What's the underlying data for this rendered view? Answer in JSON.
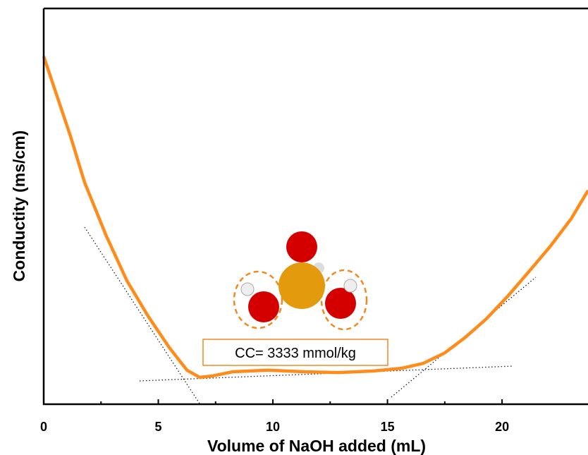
{
  "chart_data": {
    "type": "line",
    "xlabel": "Volume of NaOH added (mL)",
    "ylabel": "Conductity (ms/cm)",
    "annotation": "CC= 3333 mmol/kg",
    "xlim": [
      0,
      23.75
    ],
    "xticks": [
      0,
      5,
      10,
      15,
      20
    ],
    "ylim": [
      0,
      100
    ],
    "series": [
      {
        "color": "#ff8c1a",
        "x": [
          0,
          0.55,
          1.17,
          1.78,
          2.71,
          3.63,
          4.55,
          5.48,
          6.25,
          6.8,
          7.32,
          8.25,
          9.78,
          11.32,
          12.86,
          14.4,
          15.63,
          16.55,
          17.48,
          18.4,
          19.32,
          20.25,
          21.17,
          22.09,
          23.02,
          23.75
        ],
        "values": [
          87.9,
          78.4,
          67.7,
          56.1,
          42.8,
          31.2,
          22.3,
          14.3,
          8.6,
          6.8,
          7.1,
          8.2,
          8.6,
          8.2,
          8.0,
          8.4,
          9.1,
          10.3,
          12.9,
          16.9,
          21.6,
          27.3,
          33.5,
          39.8,
          46.9,
          54.0
        ]
      }
    ]
  }
}
